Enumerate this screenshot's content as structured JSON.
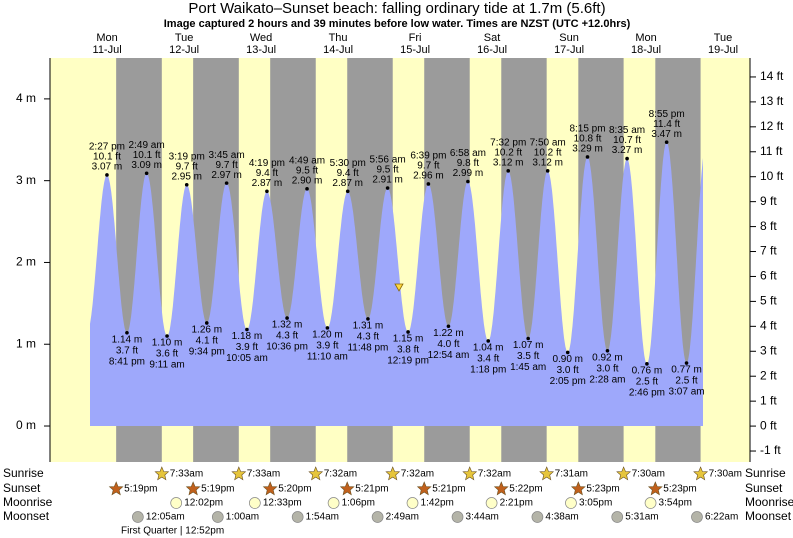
{
  "chart_data": {
    "type": "tide",
    "title": "Port Waikato–Sunset beach: falling  ordinary tide at 1.7m (5.6ft)",
    "subtitle": "Image captured 2 hours and 39 minutes before low water. Times are NZST (UTC +12.0hrs)",
    "colors": {
      "day": "#ffffc4",
      "night": "#9b9b9b",
      "water": "#9ea8fb",
      "day_label": "#cc0000",
      "sunrise": "#e6c53c",
      "sunset": "#c0601c",
      "moonrise": "#ffffc8",
      "moonset": "#b4b4a8"
    },
    "m_axis": {
      "lim": [
        -0.44,
        4.5
      ],
      "ticks": [
        {
          "value": 0,
          "label": "0 m"
        },
        {
          "value": 1,
          "label": "1 m"
        },
        {
          "value": 2,
          "label": "2 m"
        },
        {
          "value": 3,
          "label": "3 m"
        },
        {
          "value": 4,
          "label": "4 m"
        }
      ]
    },
    "ft_axis": {
      "lim": [
        -1.44,
        14.76
      ],
      "ticks": [
        {
          "value": -1,
          "label": "-1 ft"
        },
        {
          "value": 0,
          "label": "0 ft"
        },
        {
          "value": 1,
          "label": "1 ft"
        },
        {
          "value": 2,
          "label": "2 ft"
        },
        {
          "value": 3,
          "label": "3 ft"
        },
        {
          "value": 4,
          "label": "4 ft"
        },
        {
          "value": 5,
          "label": "5 ft"
        },
        {
          "value": 6,
          "label": "6 ft"
        },
        {
          "value": 7,
          "label": "7 ft"
        },
        {
          "value": 8,
          "label": "8 ft"
        },
        {
          "value": 9,
          "label": "9 ft"
        },
        {
          "value": 10,
          "label": "10 ft"
        },
        {
          "value": 11,
          "label": "11 ft"
        },
        {
          "value": 12,
          "label": "12 ft"
        },
        {
          "value": 13,
          "label": "13 ft"
        },
        {
          "value": 14,
          "label": "14 ft"
        }
      ]
    },
    "rows": {
      "sunrise": "Sunrise",
      "sunset": "Sunset",
      "moonrise": "Moonrise",
      "moonset": "Moonset"
    },
    "moon_phase": "First Quarter | 12:52pm",
    "days": [
      {
        "day": "Mon",
        "date": "11-Jul",
        "sunrise": null,
        "sunset": "5:19pm",
        "moonrise": null,
        "moonset": null,
        "tides": [
          {
            "time": "2:27 pm",
            "m": 3.07,
            "m_label": "3.07 m",
            "ft_label": "10.1 ft"
          },
          {
            "time": "8:41 pm",
            "m": 1.14,
            "m_label": "1.14 m",
            "ft_label": "3.7 ft"
          }
        ]
      },
      {
        "day": "Tue",
        "date": "12-Jul",
        "sunrise": "7:33am",
        "sunset": "5:19pm",
        "moonrise": "12:02pm",
        "moonset": "12:05am",
        "tides": [
          {
            "time": "2:49 am",
            "m": 3.09,
            "m_label": "3.09 m",
            "ft_label": "10.1 ft"
          },
          {
            "time": "9:11 am",
            "m": 1.1,
            "m_label": "1.10 m",
            "ft_label": "3.6 ft"
          },
          {
            "time": "3:19 pm",
            "m": 2.95,
            "m_label": "2.95 m",
            "ft_label": "9.7 ft"
          },
          {
            "time": "9:34 pm",
            "m": 1.26,
            "m_label": "1.26 m",
            "ft_label": "4.1 ft"
          }
        ]
      },
      {
        "day": "Wed",
        "date": "13-Jul",
        "sunrise": "7:33am",
        "sunset": "5:20pm",
        "moonrise": "12:33pm",
        "moonset": "1:00am",
        "tides": [
          {
            "time": "3:45 am",
            "m": 2.97,
            "m_label": "2.97 m",
            "ft_label": "9.7 ft"
          },
          {
            "time": "10:05 am",
            "m": 1.18,
            "m_label": "1.18 m",
            "ft_label": "3.9 ft"
          },
          {
            "time": "4:19 pm",
            "m": 2.87,
            "m_label": "2.87 m",
            "ft_label": "9.4 ft"
          },
          {
            "time": "10:36 pm",
            "m": 1.32,
            "m_label": "1.32 m",
            "ft_label": "4.3 ft"
          }
        ]
      },
      {
        "day": "Thu",
        "date": "14-Jul",
        "sunrise": "7:32am",
        "sunset": "5:21pm",
        "moonrise": "1:06pm",
        "moonset": "1:54am",
        "tides": [
          {
            "time": "4:49 am",
            "m": 2.9,
            "m_label": "2.90 m",
            "ft_label": "9.5 ft"
          },
          {
            "time": "11:10 am",
            "m": 1.2,
            "m_label": "1.20 m",
            "ft_label": "3.9 ft"
          },
          {
            "time": "5:30 pm",
            "m": 2.87,
            "m_label": "2.87 m",
            "ft_label": "9.4 ft"
          },
          {
            "time": "11:48 pm",
            "m": 1.31,
            "m_label": "1.31 m",
            "ft_label": "4.3 ft"
          }
        ]
      },
      {
        "day": "Fri",
        "date": "15-Jul",
        "sunrise": "7:32am",
        "sunset": "5:21pm",
        "moonrise": "1:42pm",
        "moonset": "2:49am",
        "tides": [
          {
            "time": "5:56 am",
            "m": 2.91,
            "m_label": "2.91 m",
            "ft_label": "9.5 ft"
          },
          {
            "time": "12:19 pm",
            "m": 1.15,
            "m_label": "1.15 m",
            "ft_label": "3.8 ft"
          },
          {
            "time": "6:39 pm",
            "m": 2.96,
            "m_label": "2.96 m",
            "ft_label": "9.7 ft"
          }
        ]
      },
      {
        "day": "Sat",
        "date": "16-Jul",
        "sunrise": "7:32am",
        "sunset": "5:22pm",
        "moonrise": "2:21pm",
        "moonset": "3:44am",
        "tides": [
          {
            "time": "12:54 am",
            "m": 1.22,
            "m_label": "1.22 m",
            "ft_label": "4.0 ft"
          },
          {
            "time": "6:58 am",
            "m": 2.99,
            "m_label": "2.99 m",
            "ft_label": "9.8 ft"
          },
          {
            "time": "1:18 pm",
            "m": 1.04,
            "m_label": "1.04 m",
            "ft_label": "3.4 ft"
          },
          {
            "time": "7:32 pm",
            "m": 3.12,
            "m_label": "3.12 m",
            "ft_label": "10.2 ft"
          }
        ]
      },
      {
        "day": "Sun",
        "date": "17-Jul",
        "sunrise": "7:31am",
        "sunset": "5:23pm",
        "moonrise": "3:05pm",
        "moonset": "4:38am",
        "tides": [
          {
            "time": "1:45 am",
            "m": 1.07,
            "m_label": "1.07 m",
            "ft_label": "3.5 ft"
          },
          {
            "time": "7:50 am",
            "m": 3.12,
            "m_label": "3.12 m",
            "ft_label": "10.2 ft"
          },
          {
            "time": "2:05 pm",
            "m": 0.9,
            "m_label": "0.90 m",
            "ft_label": "3.0 ft"
          },
          {
            "time": "8:15 pm",
            "m": 3.29,
            "m_label": "3.29 m",
            "ft_label": "10.8 ft"
          }
        ]
      },
      {
        "day": "Mon",
        "date": "18-Jul",
        "sunrise": "7:30am",
        "sunset": "5:23pm",
        "moonrise": "3:54pm",
        "moonset": "5:31am",
        "tides": [
          {
            "time": "2:28 am",
            "m": 0.92,
            "m_label": "0.92 m",
            "ft_label": "3.0 ft"
          },
          {
            "time": "8:35 am",
            "m": 3.27,
            "m_label": "3.27 m",
            "ft_label": "10.7 ft"
          },
          {
            "time": "2:46 pm",
            "m": 0.76,
            "m_label": "0.76 m",
            "ft_label": "2.5 ft"
          },
          {
            "time": "8:55 pm",
            "m": 3.47,
            "m_label": "3.47 m",
            "ft_label": "11.4 ft"
          }
        ]
      },
      {
        "day": "Tue",
        "date": "19-Jul",
        "sunrise": "7:30am",
        "sunset": null,
        "moonrise": null,
        "moonset": "6:22am",
        "tides": [
          {
            "time": "3:07 am",
            "m": 0.77,
            "m_label": "0.77 m",
            "ft_label": "2.5 ft"
          }
        ]
      }
    ]
  }
}
